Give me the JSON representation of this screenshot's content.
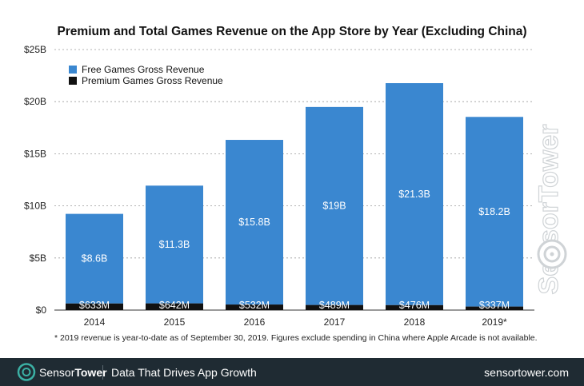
{
  "chart_data": {
    "type": "bar",
    "stacked": true,
    "title": "Premium and Total Games Revenue on the App Store by Year (Excluding China)",
    "xlabel": "",
    "ylabel": "",
    "categories": [
      "2014",
      "2015",
      "2016",
      "2017",
      "2018",
      "2019*"
    ],
    "ylim": [
      0,
      25
    ],
    "yticks": [
      0,
      5,
      10,
      15,
      20,
      25
    ],
    "ytick_labels": [
      "$0",
      "$5B",
      "$10B",
      "$15B",
      "$20B",
      "$25B"
    ],
    "grid": true,
    "legend_position": "top-left",
    "series": [
      {
        "name": "Premium Games Gross Revenue",
        "color": "#111111",
        "values": [
          0.633,
          0.642,
          0.532,
          0.489,
          0.476,
          0.337
        ],
        "labels": [
          "$633M",
          "$642M",
          "$532M",
          "$489M",
          "$476M",
          "$337M"
        ]
      },
      {
        "name": "Free Games Gross Revenue",
        "color": "#3a87d0",
        "values": [
          8.6,
          11.3,
          15.8,
          19.0,
          21.3,
          18.2
        ],
        "labels": [
          "$8.6B",
          "$11.3B",
          "$15.8B",
          "$19B",
          "$21.3B",
          "$18.2B"
        ]
      }
    ]
  },
  "footnote": "* 2019 revenue is year-to-date as of September 30, 2019. Figures exclude spending in China where Apple Arcade is not available.",
  "footer": {
    "brand_sensor": "Sensor",
    "brand_tower": "Tower",
    "tagline": "Data That Drives App Growth",
    "url": "sensortower.com",
    "background_color": "#1f2b33",
    "accent_color": "#3bb0a4"
  },
  "watermark": "SensorTower"
}
